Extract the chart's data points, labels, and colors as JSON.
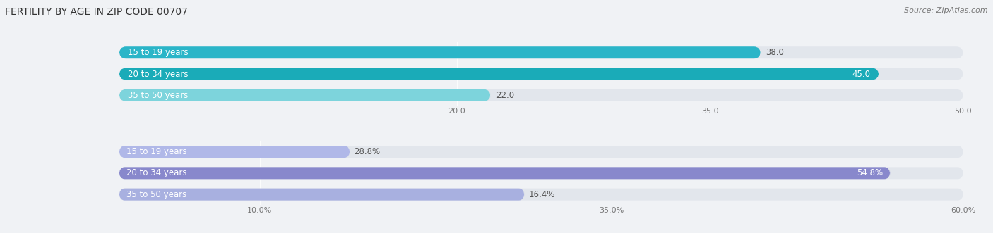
{
  "title": "FERTILITY BY AGE IN ZIP CODE 00707",
  "source": "Source: ZipAtlas.com",
  "top_section": {
    "categories": [
      "15 to 19 years",
      "20 to 34 years",
      "35 to 50 years"
    ],
    "values": [
      38.0,
      45.0,
      22.0
    ],
    "xlim": [
      0,
      50.0
    ],
    "xticks": [
      20.0,
      35.0,
      50.0
    ],
    "bar_colors": [
      "#2ab5c8",
      "#1aabb8",
      "#7dd4dc"
    ],
    "bar_height": 0.55
  },
  "bottom_section": {
    "categories": [
      "15 to 19 years",
      "20 to 34 years",
      "35 to 50 years"
    ],
    "values": [
      16.4,
      54.8,
      28.8
    ],
    "value_labels": [
      "16.4%",
      "54.8%",
      "28.8%"
    ],
    "xlim": [
      0,
      60.0
    ],
    "xticks": [
      10.0,
      35.0,
      60.0
    ],
    "xtick_labels": [
      "10.0%",
      "35.0%",
      "60.0%"
    ],
    "bar_colors": [
      "#b0b8e8",
      "#8888cc",
      "#a8b0e0"
    ],
    "bar_height": 0.55
  },
  "bg_color": "#f0f2f5",
  "bar_bg_color": "#e2e6ec",
  "label_fontsize": 8.5,
  "value_fontsize": 8.5,
  "title_fontsize": 10,
  "source_fontsize": 8
}
